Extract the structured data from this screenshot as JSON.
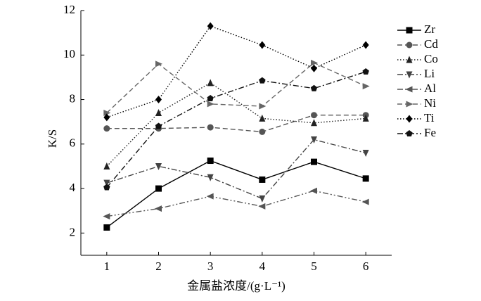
{
  "chart_data": {
    "type": "line",
    "x_label": "金属盐浓度/(g·L⁻¹)",
    "y_label": "K/S",
    "x": [
      1,
      2,
      3,
      4,
      5,
      6
    ],
    "xlim": [
      0.5,
      6.5
    ],
    "xticks": [
      1,
      2,
      3,
      4,
      5,
      6
    ],
    "ylim": [
      1,
      12
    ],
    "yticks": [
      2,
      4,
      6,
      8,
      10,
      12
    ],
    "legend": "upper right",
    "series": [
      {
        "name": "Zr",
        "color": "#000000",
        "dash": "solid",
        "marker": "square",
        "values": [
          2.25,
          4.0,
          5.25,
          4.4,
          5.2,
          4.45
        ]
      },
      {
        "name": "Cd",
        "color": "#555555",
        "dash": "dashed",
        "marker": "circle",
        "values": [
          6.7,
          6.7,
          6.75,
          6.55,
          7.3,
          7.3
        ]
      },
      {
        "name": "Co",
        "color": "#222222",
        "dash": "dotted",
        "marker": "triangle-up",
        "values": [
          5.0,
          7.4,
          8.75,
          7.15,
          6.95,
          7.15
        ]
      },
      {
        "name": "Li",
        "color": "#444444",
        "dash": "dashdot",
        "marker": "triangle-down",
        "values": [
          4.25,
          5.0,
          4.5,
          3.55,
          6.2,
          5.6
        ]
      },
      {
        "name": "Al",
        "color": "#555555",
        "dash": "dashdotdot",
        "marker": "triangle-left",
        "values": [
          2.75,
          3.1,
          3.65,
          3.2,
          3.9,
          3.4
        ]
      },
      {
        "name": "Ni",
        "color": "#666666",
        "dash": "dashed",
        "marker": "triangle-right",
        "values": [
          7.4,
          9.6,
          7.8,
          7.7,
          9.65,
          8.6
        ]
      },
      {
        "name": "Ti",
        "color": "#000000",
        "dash": "dotted",
        "marker": "diamond",
        "values": [
          7.2,
          8.0,
          11.3,
          10.45,
          9.4,
          10.45
        ]
      },
      {
        "name": "Fe",
        "color": "#111111",
        "dash": "dashdot",
        "marker": "pentagon",
        "values": [
          4.05,
          6.8,
          8.05,
          8.85,
          8.5,
          9.25
        ]
      }
    ]
  }
}
